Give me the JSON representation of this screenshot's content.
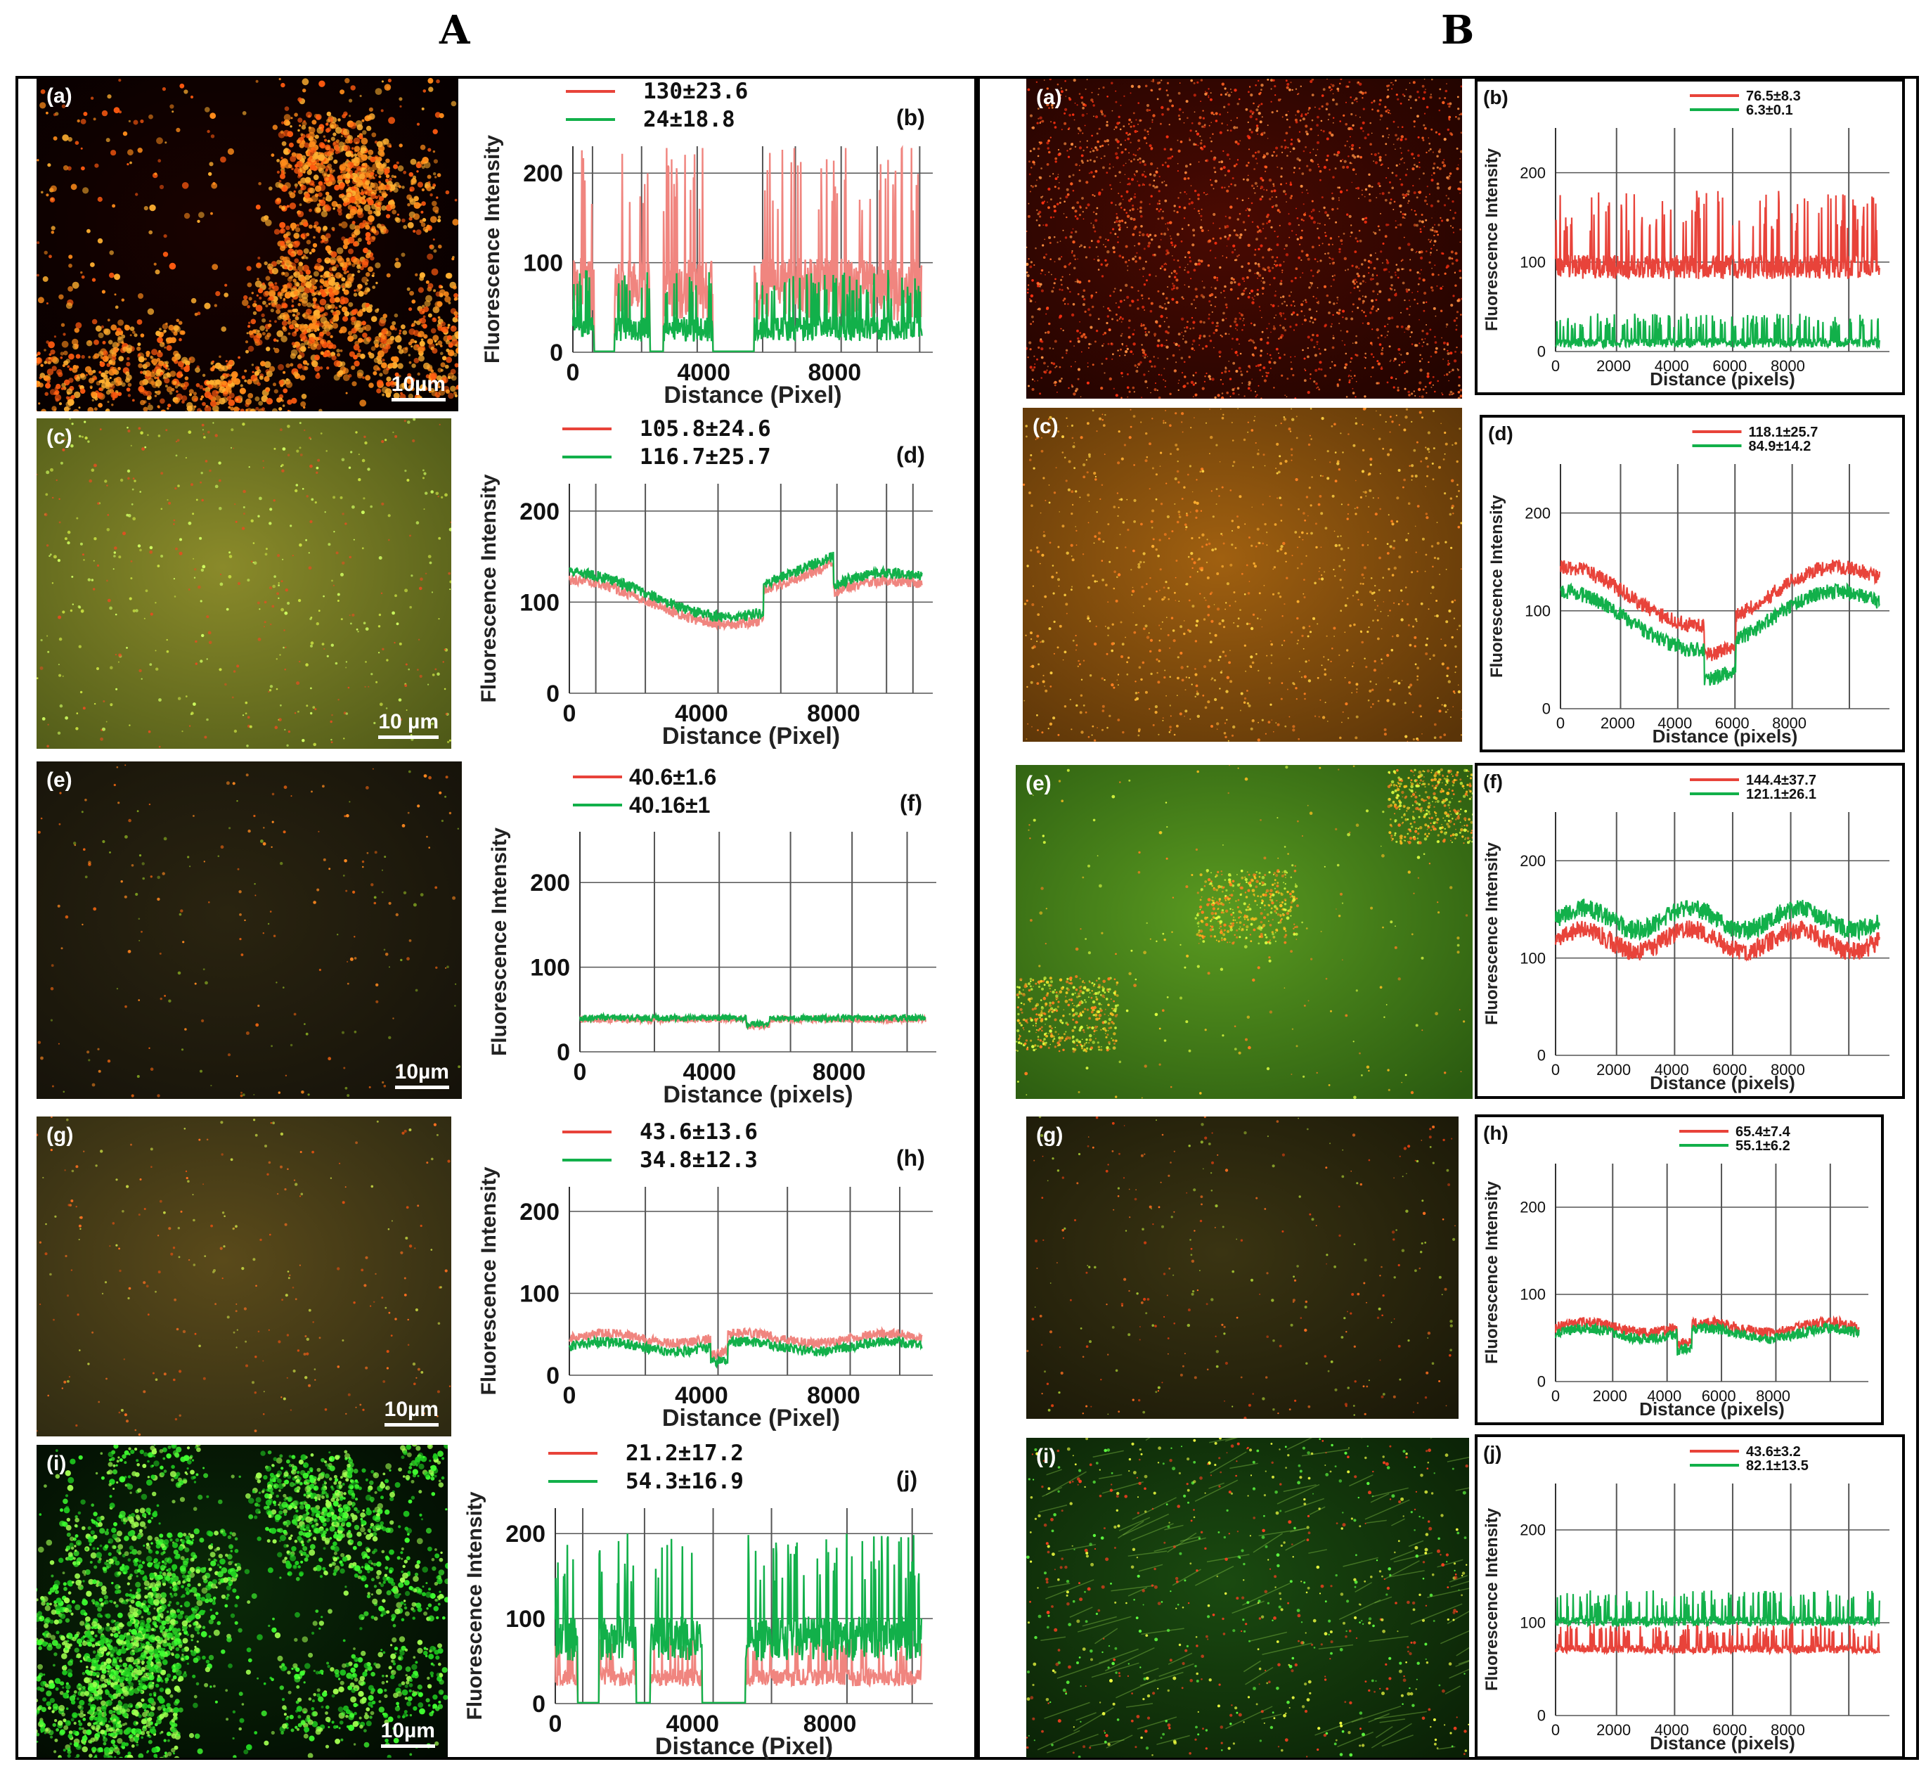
{
  "column_labels": {
    "left": "A",
    "right": "B"
  },
  "colors": {
    "red": "#e8433a",
    "red_light": "#f0857f",
    "green": "#12b04a",
    "grid": "#555555",
    "frame": "#000000"
  },
  "micrographs": [
    {
      "id": "A-a",
      "label": "(a)",
      "scale": "10µm",
      "style": "red-clusters"
    },
    {
      "id": "A-c",
      "label": "(c)",
      "scale": "10 µm",
      "style": "yellow-green-haze"
    },
    {
      "id": "A-e",
      "label": "(e)",
      "scale": "10µm",
      "style": "dark-sparse"
    },
    {
      "id": "A-g",
      "label": "(g)",
      "scale": "10µm",
      "style": "olive-sparse"
    },
    {
      "id": "A-i",
      "label": "(i)",
      "scale": "10µm",
      "style": "green-clusters"
    },
    {
      "id": "B-a",
      "label": "(a)",
      "scale": "",
      "style": "red-speckle"
    },
    {
      "id": "B-c",
      "label": "(c)",
      "scale": "",
      "style": "amber-speckle"
    },
    {
      "id": "B-e",
      "label": "(e)",
      "scale": "",
      "style": "green-yellow"
    },
    {
      "id": "B-g",
      "label": "(g)",
      "scale": "",
      "style": "dark-olive"
    },
    {
      "id": "B-i",
      "label": "(i)",
      "scale": "",
      "style": "green-fibrous"
    }
  ],
  "chart_data": [
    {
      "id": "A-b",
      "panel_label": "(b)",
      "type": "line",
      "xlabel": "Distance (Pixel)",
      "ylabel": "Fluorescence Intensity",
      "xlim": [
        0,
        11000
      ],
      "ylim": [
        0,
        230
      ],
      "xticks": [
        0,
        4000,
        8000
      ],
      "yticks": [
        0,
        100,
        200
      ],
      "vlines": [
        600,
        2100,
        3800,
        5800,
        6800,
        8200,
        9300,
        10600
      ],
      "legend": {
        "red": "",
        "green": ""
      },
      "stats": [
        "130±23.6",
        "24±18.8"
      ],
      "series": [
        {
          "name": "red",
          "mean": 35,
          "amp": 200,
          "pattern": "spiky-gap",
          "seed": 11,
          "light": true
        },
        {
          "name": "green",
          "mean": 12,
          "amp": 80,
          "pattern": "spiky-gap",
          "seed": 12
        }
      ]
    },
    {
      "id": "A-d",
      "panel_label": "(d)",
      "type": "line",
      "xlabel": "Distance (Pixel)",
      "ylabel": "Fluorescence Intensity",
      "xlim": [
        0,
        11000
      ],
      "ylim": [
        0,
        230
      ],
      "xticks": [
        0,
        4000,
        8000
      ],
      "yticks": [
        0,
        100,
        200
      ],
      "vlines": [
        800,
        2300,
        4500,
        6400,
        8100,
        9600,
        10400
      ],
      "legend": {
        "red": "",
        "green": ""
      },
      "stats": [
        "105.8±24.6",
        "116.7±25.7"
      ],
      "series": [
        {
          "name": "red",
          "mean": 100,
          "amp": 8,
          "pattern": "wave-d",
          "seed": 21,
          "light": true
        },
        {
          "name": "green",
          "mean": 108,
          "amp": 8,
          "pattern": "wave-d",
          "seed": 22
        }
      ]
    },
    {
      "id": "A-f",
      "panel_label": "(f)",
      "type": "line",
      "xlabel": "Distance (pixels)",
      "ylabel": "Fluorescence Intensity",
      "xlim": [
        0,
        11000
      ],
      "ylim": [
        0,
        260
      ],
      "xticks": [
        0,
        4000,
        8000
      ],
      "yticks": [
        0,
        100,
        200
      ],
      "vlines": [
        0,
        2300,
        4300,
        6500,
        8400,
        10100
      ],
      "legend": {
        "red": "40.6±1.6",
        "green": "40.16±1"
      },
      "stats": [],
      "series": [
        {
          "name": "red",
          "mean": 38,
          "amp": 6,
          "pattern": "flat",
          "seed": 31,
          "light": true
        },
        {
          "name": "green",
          "mean": 40,
          "amp": 6,
          "pattern": "flat",
          "seed": 32
        }
      ]
    },
    {
      "id": "A-h",
      "panel_label": "(h)",
      "type": "line",
      "xlabel": "Distance (Pixel)",
      "ylabel": "Fluorescence Intensity",
      "xlim": [
        0,
        11000
      ],
      "ylim": [
        0,
        230
      ],
      "xticks": [
        0,
        4000,
        8000
      ],
      "yticks": [
        0,
        100,
        200
      ],
      "vlines": [
        0,
        2300,
        4500,
        6600,
        8500,
        10000
      ],
      "legend": {
        "red": "",
        "green": ""
      },
      "stats": [
        "43.6±13.6",
        "34.8±12.3"
      ],
      "series": [
        {
          "name": "red",
          "mean": 45,
          "amp": 10,
          "pattern": "wave-h",
          "seed": 41,
          "light": true
        },
        {
          "name": "green",
          "mean": 35,
          "amp": 10,
          "pattern": "wave-h",
          "seed": 42
        }
      ]
    },
    {
      "id": "A-j",
      "panel_label": "(j)",
      "type": "line",
      "xlabel": "Distance (Pixel)",
      "ylabel": "Fluorescence Intensity",
      "xlim": [
        0,
        11000
      ],
      "ylim": [
        0,
        230
      ],
      "xticks": [
        0,
        4000,
        8000
      ],
      "yticks": [
        0,
        100,
        200
      ],
      "vlines": [
        800,
        2600,
        4600,
        6300,
        8500,
        10400
      ],
      "legend": {
        "red": "",
        "green": ""
      },
      "stats": [
        "21.2±17.2",
        "54.3±16.9"
      ],
      "series": [
        {
          "name": "red",
          "mean": 20,
          "amp": 60,
          "pattern": "spiky-gap",
          "seed": 51,
          "light": true
        },
        {
          "name": "green",
          "mean": 50,
          "amp": 150,
          "pattern": "spiky-gap",
          "seed": 52
        }
      ]
    },
    {
      "id": "B-b",
      "panel_label": "(b)",
      "type": "line",
      "xlabel": "Distance (pixels)",
      "ylabel": "Fluorescence Intensity",
      "xlim": [
        0,
        11500
      ],
      "ylim": [
        0,
        250
      ],
      "xticks": [
        0,
        2000,
        4000,
        6000,
        8000
      ],
      "yticks": [
        0,
        100,
        200
      ],
      "vlines": [
        2100,
        4100,
        6100,
        8100,
        10100
      ],
      "legend": {
        "red": "76.5±8.3",
        "green": "6.3±0.1"
      },
      "stats": [],
      "series": [
        {
          "name": "red",
          "mean": 90,
          "amp": 90,
          "pattern": "spiky",
          "seed": 61
        },
        {
          "name": "green",
          "mean": 8,
          "amp": 35,
          "pattern": "spiky",
          "seed": 62
        }
      ]
    },
    {
      "id": "B-d",
      "panel_label": "(d)",
      "type": "line",
      "xlabel": "Distance (pixels)",
      "ylabel": "Fluorescence Intensity",
      "xlim": [
        0,
        11500
      ],
      "ylim": [
        0,
        250
      ],
      "xticks": [
        0,
        2000,
        4000,
        6000,
        8000
      ],
      "yticks": [
        0,
        100,
        200
      ],
      "vlines": [
        2100,
        4100,
        6100,
        8100,
        10100
      ],
      "legend": {
        "red": "118.1±25.7",
        "green": "84.9±14.2"
      },
      "stats": [],
      "series": [
        {
          "name": "red",
          "mean": 115,
          "amp": 12,
          "pattern": "wave-bd",
          "seed": 71
        },
        {
          "name": "green",
          "mean": 90,
          "amp": 12,
          "pattern": "wave-bd",
          "seed": 72
        }
      ]
    },
    {
      "id": "B-f",
      "panel_label": "(f)",
      "type": "line",
      "xlabel": "Distance (pixels)",
      "ylabel": "Fluorescence Intensity",
      "xlim": [
        0,
        11500
      ],
      "ylim": [
        0,
        250
      ],
      "xticks": [
        0,
        2000,
        4000,
        6000,
        8000
      ],
      "yticks": [
        0,
        100,
        200
      ],
      "vlines": [
        2100,
        4100,
        6100,
        8100,
        10100
      ],
      "legend": {
        "red": "144.4±37.7",
        "green": "121.1±26.1"
      },
      "stats": [],
      "series": [
        {
          "name": "red",
          "mean": 118,
          "amp": 14,
          "pattern": "wave-bf",
          "seed": 81
        },
        {
          "name": "green",
          "mean": 140,
          "amp": 14,
          "pattern": "wave-bf",
          "seed": 82
        }
      ]
    },
    {
      "id": "B-h",
      "panel_label": "(h)",
      "type": "line",
      "xlabel": "Distance (pixels)",
      "ylabel": "Fluorescence Intensity",
      "xlim": [
        0,
        11500
      ],
      "ylim": [
        0,
        250
      ],
      "xticks": [
        0,
        2000,
        4000,
        6000,
        8000
      ],
      "yticks": [
        0,
        100,
        200
      ],
      "vlines": [
        2100,
        4100,
        6100,
        8100,
        10100
      ],
      "legend": {
        "red": "65.4±7.4",
        "green": "55.1±6.2"
      },
      "stats": [],
      "series": [
        {
          "name": "red",
          "mean": 62,
          "amp": 10,
          "pattern": "wave-h",
          "seed": 91
        },
        {
          "name": "green",
          "mean": 55,
          "amp": 10,
          "pattern": "wave-h",
          "seed": 92
        }
      ]
    },
    {
      "id": "B-j",
      "panel_label": "(j)",
      "type": "line",
      "xlabel": "Distance (pixels)",
      "ylabel": "Fluorescence Intensity",
      "xlim": [
        0,
        11500
      ],
      "ylim": [
        0,
        250
      ],
      "xticks": [
        0,
        2000,
        4000,
        6000,
        8000
      ],
      "yticks": [
        0,
        100,
        200
      ],
      "vlines": [
        2100,
        4100,
        6100,
        8100,
        10100
      ],
      "legend": {
        "red": "43.6±3.2",
        "green": "82.1±13.5"
      },
      "stats": [],
      "series": [
        {
          "name": "red",
          "mean": 70,
          "amp": 30,
          "pattern": "spiky",
          "seed": 101
        },
        {
          "name": "green",
          "mean": 100,
          "amp": 35,
          "pattern": "spiky",
          "seed": 102
        }
      ]
    }
  ]
}
